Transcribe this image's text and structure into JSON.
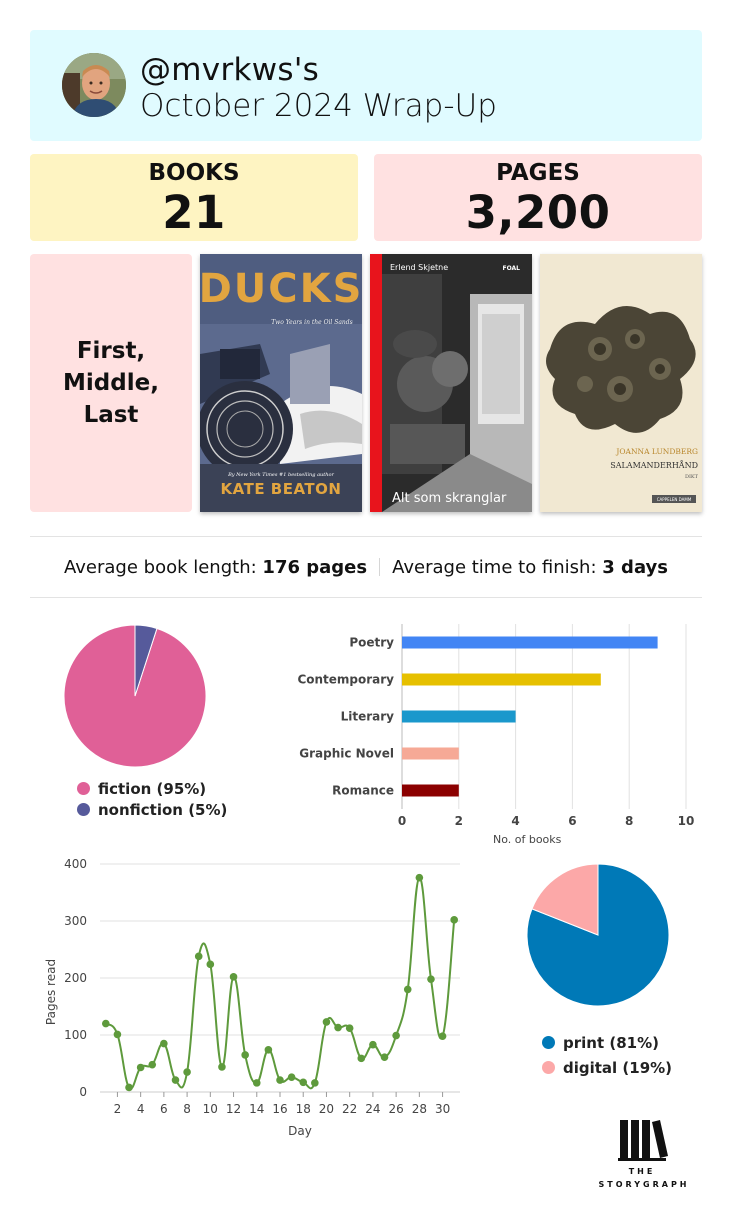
{
  "header": {
    "handle": "@mvrkws's",
    "month": "October 2024 Wrap-Up"
  },
  "stats": {
    "books_label": "BOOKS",
    "books_value": "21",
    "pages_label": "PAGES",
    "pages_value": "3,200"
  },
  "first_middle_last": {
    "label": "First, Middle, Last",
    "covers": [
      {
        "title": "DUCKS",
        "subtitle": "Two Years in the Oil Sands",
        "tagline": "By New York Times #1 bestselling author",
        "author": "KATE BEATON"
      },
      {
        "title": "Alt som skranglar",
        "author": "Erlend Skjetne",
        "publisher": "FOAL"
      },
      {
        "title": "SALAMANDERHÅND",
        "author": "JOANNA LUNDBERG",
        "subtitle": "DIKT",
        "publisher": "CAPPELEN DAMM"
      }
    ]
  },
  "averages": {
    "length_label": "Average book length:",
    "length_value": "176 pages",
    "time_label": "Average time to finish:",
    "time_value": "3 days"
  },
  "chart_data": [
    {
      "type": "pie",
      "categories": [
        "fiction",
        "nonfiction"
      ],
      "values": [
        95,
        5
      ],
      "legend": [
        "fiction (95%)",
        "nonfiction (5%)"
      ],
      "colors": [
        "#e06097",
        "#565a9b"
      ],
      "legend_position": "bottom"
    },
    {
      "type": "bar",
      "orientation": "horizontal",
      "categories": [
        "Poetry",
        "Contemporary",
        "Literary",
        "Graphic Novel",
        "Romance"
      ],
      "values": [
        9,
        7,
        4,
        2,
        2
      ],
      "colors": [
        "#4285f4",
        "#e6c000",
        "#1a98cc",
        "#f6a996",
        "#8b0000"
      ],
      "xlabel": "No. of books",
      "xlim": [
        0,
        10
      ],
      "xticks": [
        0,
        2,
        4,
        6,
        8,
        10
      ],
      "grid": true
    },
    {
      "type": "line",
      "x": [
        1,
        2,
        3,
        4,
        5,
        6,
        7,
        8,
        9,
        10,
        11,
        12,
        13,
        14,
        15,
        16,
        17,
        18,
        19,
        20,
        21,
        22,
        23,
        24,
        25,
        26,
        27,
        28,
        29,
        30,
        31
      ],
      "values": [
        120,
        101,
        8,
        43,
        48,
        85,
        21,
        35,
        238,
        224,
        44,
        202,
        65,
        16,
        74,
        21,
        26,
        17,
        16,
        123,
        113,
        112,
        59,
        83,
        61,
        99,
        180,
        376,
        198,
        98,
        302
      ],
      "xlabel": "Day",
      "ylabel": "Pages read",
      "ylim": [
        0,
        400
      ],
      "yticks": [
        0,
        100,
        200,
        300,
        400
      ],
      "xticks": [
        2,
        4,
        6,
        8,
        10,
        12,
        14,
        16,
        18,
        20,
        22,
        24,
        26,
        28,
        30
      ],
      "color": "#5e9a3c",
      "grid": true
    },
    {
      "type": "pie",
      "categories": [
        "print",
        "digital"
      ],
      "values": [
        81,
        19
      ],
      "legend": [
        "print (81%)",
        "digital (19%)"
      ],
      "colors": [
        "#0079b7",
        "#fca8a8"
      ],
      "legend_position": "bottom"
    }
  ],
  "logo": {
    "line1": "THE",
    "line2": "STORYGRAPH"
  }
}
